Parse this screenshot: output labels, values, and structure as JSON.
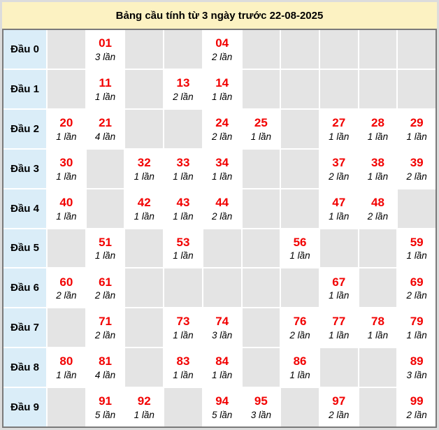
{
  "title": "Bảng cầu tính từ 3 ngày trước 22-08-2025",
  "colors": {
    "page_bg": "#dcdcdc",
    "title_bg": "#fcf2c2",
    "table_border": "#7a7a7a",
    "label_bg": "#daedf8",
    "empty_cell_bg": "#e4e4e4",
    "filled_cell_bg": "#ffffff",
    "number_red": "#f20000"
  },
  "rows": [
    {
      "label": "Đầu 0",
      "cells": [
        null,
        {
          "number": "01",
          "count": "3 lần"
        },
        null,
        null,
        {
          "number": "04",
          "count": "2 lần"
        },
        null,
        null,
        null,
        null,
        null
      ]
    },
    {
      "label": "Đầu 1",
      "cells": [
        null,
        {
          "number": "11",
          "count": "1 lần"
        },
        null,
        {
          "number": "13",
          "count": "2 lần"
        },
        {
          "number": "14",
          "count": "1 lần"
        },
        null,
        null,
        null,
        null,
        null
      ]
    },
    {
      "label": "Đầu 2",
      "cells": [
        {
          "number": "20",
          "count": "1 lần"
        },
        {
          "number": "21",
          "count": "4 lần"
        },
        null,
        null,
        {
          "number": "24",
          "count": "2 lần"
        },
        {
          "number": "25",
          "count": "1 lần"
        },
        null,
        {
          "number": "27",
          "count": "1 lần"
        },
        {
          "number": "28",
          "count": "1 lần"
        },
        {
          "number": "29",
          "count": "1 lần"
        }
      ]
    },
    {
      "label": "Đầu 3",
      "cells": [
        {
          "number": "30",
          "count": "1 lần"
        },
        null,
        {
          "number": "32",
          "count": "1 lần"
        },
        {
          "number": "33",
          "count": "1 lần"
        },
        {
          "number": "34",
          "count": "1 lần"
        },
        null,
        null,
        {
          "number": "37",
          "count": "2 lần"
        },
        {
          "number": "38",
          "count": "1 lần"
        },
        {
          "number": "39",
          "count": "2 lần"
        }
      ]
    },
    {
      "label": "Đầu 4",
      "cells": [
        {
          "number": "40",
          "count": "1 lần"
        },
        null,
        {
          "number": "42",
          "count": "1 lần"
        },
        {
          "number": "43",
          "count": "1 lần"
        },
        {
          "number": "44",
          "count": "2 lần"
        },
        null,
        null,
        {
          "number": "47",
          "count": "1 lần"
        },
        {
          "number": "48",
          "count": "2 lần"
        },
        null
      ]
    },
    {
      "label": "Đầu 5",
      "cells": [
        null,
        {
          "number": "51",
          "count": "1 lần"
        },
        null,
        {
          "number": "53",
          "count": "1 lần"
        },
        null,
        null,
        {
          "number": "56",
          "count": "1 lần"
        },
        null,
        null,
        {
          "number": "59",
          "count": "1 lần"
        }
      ]
    },
    {
      "label": "Đầu 6",
      "cells": [
        {
          "number": "60",
          "count": "2 lần"
        },
        {
          "number": "61",
          "count": "2 lần"
        },
        null,
        null,
        null,
        null,
        null,
        {
          "number": "67",
          "count": "1 lần"
        },
        null,
        {
          "number": "69",
          "count": "2 lần"
        }
      ]
    },
    {
      "label": "Đầu 7",
      "cells": [
        null,
        {
          "number": "71",
          "count": "2 lần"
        },
        null,
        {
          "number": "73",
          "count": "1 lần"
        },
        {
          "number": "74",
          "count": "3 lần"
        },
        null,
        {
          "number": "76",
          "count": "2 lần"
        },
        {
          "number": "77",
          "count": "1 lần"
        },
        {
          "number": "78",
          "count": "1 lần"
        },
        {
          "number": "79",
          "count": "1 lần"
        }
      ]
    },
    {
      "label": "Đầu 8",
      "cells": [
        {
          "number": "80",
          "count": "1 lần"
        },
        {
          "number": "81",
          "count": "4 lần"
        },
        null,
        {
          "number": "83",
          "count": "1 lần"
        },
        {
          "number": "84",
          "count": "1 lần"
        },
        null,
        {
          "number": "86",
          "count": "1 lần"
        },
        null,
        null,
        {
          "number": "89",
          "count": "3 lần"
        }
      ]
    },
    {
      "label": "Đầu 9",
      "cells": [
        null,
        {
          "number": "91",
          "count": "5 lần"
        },
        {
          "number": "92",
          "count": "1 lần"
        },
        null,
        {
          "number": "94",
          "count": "5 lần"
        },
        {
          "number": "95",
          "count": "3 lần"
        },
        null,
        {
          "number": "97",
          "count": "2 lần"
        },
        null,
        {
          "number": "99",
          "count": "2 lần"
        }
      ]
    }
  ]
}
